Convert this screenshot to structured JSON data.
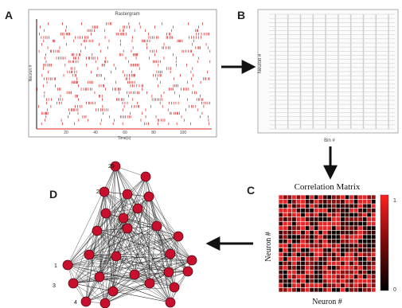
{
  "panel_labels": {
    "a": "A",
    "b": "B",
    "c": "C",
    "d": "D"
  },
  "raster": {
    "title": "Rastergram",
    "ylabel": "Neuron #",
    "xlabel": "Time(s)",
    "xticks": [
      "20",
      "40",
      "60",
      "80",
      "100"
    ],
    "x_max": 120,
    "n_neurons": 30,
    "spike_color": "#dd2020"
  },
  "bin_table": {
    "ylabel": "Neuron #",
    "xlabel": "Bin #",
    "rows": 28,
    "cols": 10
  },
  "correlation": {
    "title": "Correlation Matrix",
    "ylabel": "Neuron #",
    "xlabel": "Neuron #",
    "n": 22,
    "colorbar_max": "1",
    "colorbar_min": "0"
  },
  "network": {
    "node_labels": [
      "29",
      "2",
      "1",
      "3",
      "4"
    ],
    "node_color": "#c8102e",
    "node_count": 28
  },
  "colors": {
    "accent_red": "#e02020",
    "arrow": "#111111",
    "grid": "#8a8a8a"
  }
}
